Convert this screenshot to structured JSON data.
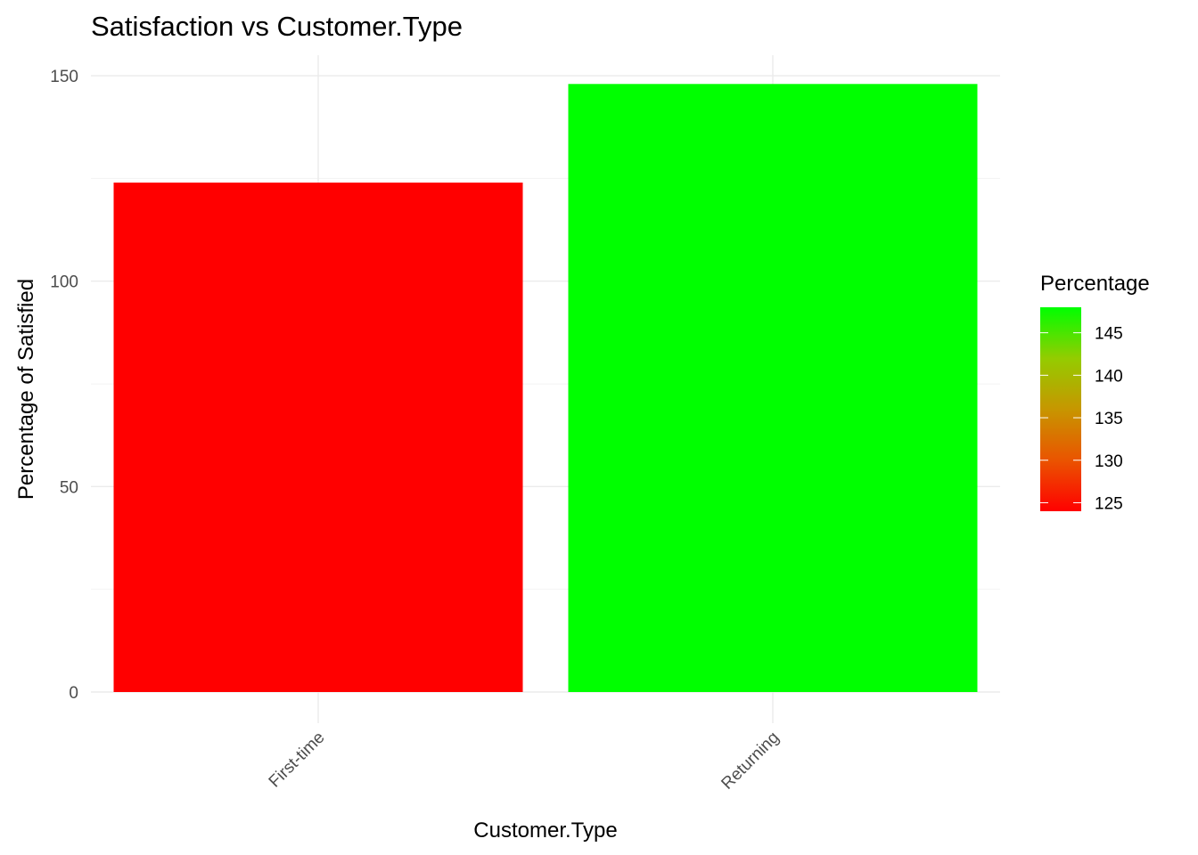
{
  "chart_data": {
    "type": "bar",
    "title": "Satisfaction vs Customer.Type",
    "xlabel": "Customer.Type",
    "ylabel": "Percentage of Satisfied",
    "categories": [
      "First-time",
      "Returning"
    ],
    "values": [
      124,
      148
    ],
    "ylim": [
      0,
      155
    ],
    "yticks": [
      0,
      50,
      100,
      150
    ],
    "grid": true,
    "x_tick_rotation_deg": 45,
    "legend": {
      "title": "Percentage",
      "placement": "right",
      "type": "colorbar",
      "range": [
        124,
        148
      ],
      "ticks": [
        125,
        130,
        135,
        140,
        145
      ],
      "color_low": "#ff0000",
      "color_high": "#00ff00"
    }
  }
}
